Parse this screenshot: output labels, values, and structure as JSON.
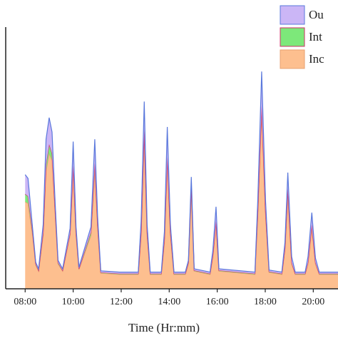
{
  "chart_data": {
    "type": "stacked_area",
    "xlabel": "Time (Hr:mm)",
    "x": [
      8.0,
      8.12,
      8.31,
      8.44,
      8.56,
      8.75,
      8.87,
      9.0,
      9.12,
      9.25,
      9.37,
      9.56,
      9.87,
      10.0,
      10.12,
      10.24,
      10.74,
      10.9,
      11.02,
      11.15,
      11.93,
      12.71,
      12.83,
      12.96,
      13.08,
      13.21,
      13.67,
      13.8,
      13.92,
      14.05,
      14.2,
      14.67,
      14.8,
      14.92,
      15.04,
      15.7,
      15.82,
      15.95,
      16.07,
      17.57,
      17.69,
      17.85,
      18.01,
      18.16,
      18.69,
      18.82,
      18.94,
      19.1,
      19.25,
      19.66,
      19.78,
      19.94,
      20.09,
      20.25,
      21.03
    ],
    "series": [
      {
        "name": "Inc",
        "color": "#fdbf8f",
        "line": "#e8a070",
        "values": [
          3.39,
          3.33,
          2.08,
          0.92,
          0.69,
          2.08,
          4.58,
          5.28,
          5.0,
          2.92,
          0.97,
          0.69,
          2.08,
          4.58,
          2.08,
          0.75,
          2.08,
          4.58,
          2.36,
          0.61,
          0.56,
          0.56,
          2.08,
          5.83,
          2.08,
          0.56,
          0.56,
          1.81,
          4.92,
          2.08,
          0.56,
          0.56,
          0.97,
          3.89,
          0.69,
          0.56,
          1.25,
          2.5,
          0.69,
          0.56,
          2.92,
          6.81,
          2.92,
          0.64,
          0.56,
          1.53,
          3.61,
          0.97,
          0.56,
          0.56,
          0.97,
          2.36,
          0.97,
          0.56,
          0.56
        ]
      },
      {
        "name": "Int",
        "color": "#7de87a",
        "line": "#d0306a",
        "values": [
          0.31,
          0.28,
          0.14,
          0.06,
          0.03,
          0.14,
          0.28,
          0.36,
          0.28,
          0.14,
          0.06,
          0.03,
          0.08,
          0.22,
          0.14,
          0.03,
          0.14,
          0.33,
          0.14,
          0.03,
          0.03,
          0.03,
          0.14,
          0.36,
          0.14,
          0.03,
          0.03,
          0.14,
          0.22,
          0.14,
          0.03,
          0.03,
          0.06,
          0.14,
          0.03,
          0.03,
          0.08,
          0.14,
          0.03,
          0.03,
          0.14,
          0.33,
          0.14,
          0.03,
          0.03,
          0.06,
          0.28,
          0.06,
          0.03,
          0.03,
          0.06,
          0.14,
          0.06,
          0.03,
          0.03
        ]
      },
      {
        "name": "Ou",
        "color": "#cbb6f6",
        "line": "#5a78dc",
        "values": [
          0.75,
          0.69,
          0.14,
          0.06,
          0.06,
          0.28,
          0.97,
          1.03,
          0.83,
          0.28,
          0.08,
          0.06,
          0.19,
          0.94,
          0.19,
          0.06,
          0.19,
          0.92,
          0.28,
          0.06,
          0.06,
          0.06,
          0.42,
          1.11,
          0.28,
          0.06,
          0.06,
          0.28,
          1.17,
          0.28,
          0.06,
          0.06,
          0.08,
          0.33,
          0.06,
          0.06,
          0.19,
          0.56,
          0.06,
          0.06,
          0.42,
          1.33,
          0.42,
          0.06,
          0.06,
          0.22,
          0.64,
          0.22,
          0.06,
          0.06,
          0.22,
          0.47,
          0.17,
          0.06,
          0.06
        ]
      }
    ],
    "xlim": [
      7.19,
      21.03
    ],
    "ylim": [
      0,
      10.2
    ],
    "xticks": [
      {
        "value": 8,
        "label": "08:00"
      },
      {
        "value": 10,
        "label": "10:00"
      },
      {
        "value": 12,
        "label": "12:00"
      },
      {
        "value": 14,
        "label": "14:00"
      },
      {
        "value": 16,
        "label": "16:00"
      },
      {
        "value": 18,
        "label": "18:00"
      },
      {
        "value": 20,
        "label": "20:00"
      }
    ],
    "legend": "upper right"
  }
}
